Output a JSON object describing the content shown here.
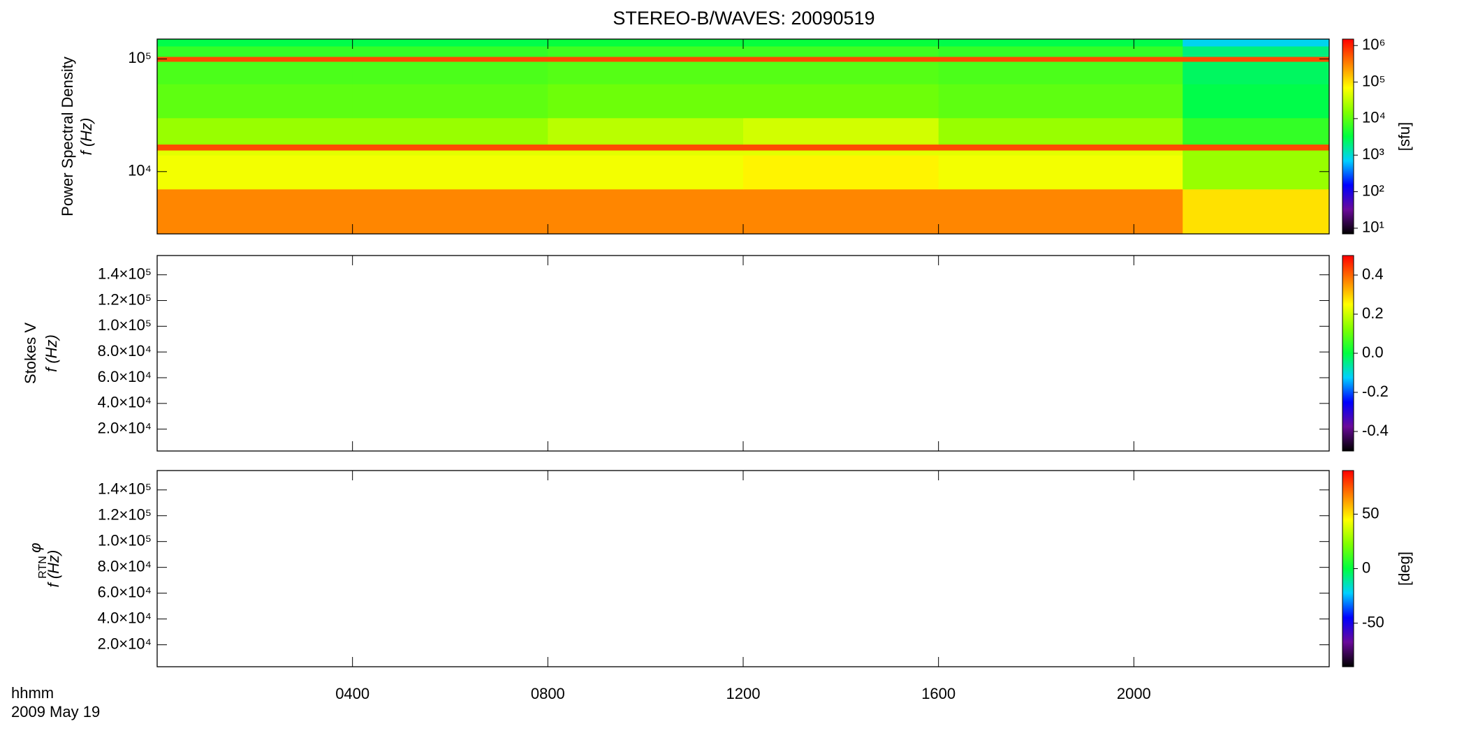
{
  "chart_data": [
    {
      "type": "heatmap",
      "title": "STEREO-B/WAVES: 20090519",
      "ylabel": [
        "Power Spectral Density",
        "f (Hz)"
      ],
      "ylog": true,
      "ylim": [
        2800,
        150000
      ],
      "yticks": [
        {
          "value": 10000,
          "label": "10⁴"
        },
        {
          "value": 100000,
          "label": "10⁵"
        }
      ],
      "xlim": [
        0,
        24
      ],
      "x_edges": [
        0,
        4,
        8,
        12,
        16,
        21,
        24
      ],
      "y_edges": [
        2800,
        7000,
        14000,
        15500,
        17500,
        30000,
        60000,
        95000,
        105000,
        130000,
        150000
      ],
      "z": [
        [
          300000,
          300000,
          300000,
          300000,
          300000,
          100000
        ],
        [
          60000,
          60000,
          60000,
          80000,
          60000,
          20000
        ],
        [
          50000,
          50000,
          50000,
          50000,
          50000,
          20000
        ],
        [
          600000,
          600000,
          600000,
          600000,
          600000,
          600000
        ],
        [
          20000,
          20000,
          30000,
          40000,
          20000,
          6000
        ],
        [
          10000,
          10000,
          12000,
          12000,
          10000,
          3000
        ],
        [
          8000,
          8000,
          9000,
          9000,
          8000,
          2500
        ],
        [
          600000,
          600000,
          600000,
          600000,
          600000,
          600000
        ],
        [
          6000,
          6000,
          7000,
          7000,
          6000,
          2000
        ],
        [
          3000,
          3000,
          3500,
          3500,
          3000,
          800
        ]
      ],
      "colormap": [
        "#000000",
        "#6a0a9a",
        "#0000ff",
        "#00d0ff",
        "#00ff40",
        "#80ff00",
        "#ffff00",
        "#ff8000",
        "#ff0000"
      ],
      "clog": true,
      "clim": [
        7,
        1500000
      ],
      "cticks": [
        {
          "value": 10,
          "label": "10¹"
        },
        {
          "value": 100,
          "label": "10²"
        },
        {
          "value": 1000,
          "label": "10³"
        },
        {
          "value": 10000,
          "label": "10⁴"
        },
        {
          "value": 100000,
          "label": "10⁵"
        },
        {
          "value": 1000000,
          "label": "10⁶"
        }
      ],
      "clabel": "[sfu]"
    },
    {
      "type": "heatmap",
      "ylabel": [
        "Stokes V",
        "f (Hz)"
      ],
      "ylim": [
        3000,
        155000
      ],
      "yticks": [
        {
          "value": 20000,
          "label": "2.0×10⁴"
        },
        {
          "value": 40000,
          "label": "4.0×10⁴"
        },
        {
          "value": 60000,
          "label": "6.0×10⁴"
        },
        {
          "value": 80000,
          "label": "8.0×10⁴"
        },
        {
          "value": 100000,
          "label": "1.0×10⁵"
        },
        {
          "value": 120000,
          "label": "1.2×10⁵"
        },
        {
          "value": 140000,
          "label": "1.4×10⁵"
        }
      ],
      "xlim": [
        0,
        24
      ],
      "colormap": [
        "#000000",
        "#6a0a9a",
        "#0000ff",
        "#00d0ff",
        "#00ff40",
        "#80ff00",
        "#ffff00",
        "#ff8000",
        "#ff0000"
      ],
      "clim": [
        -0.5,
        0.5
      ],
      "cticks": [
        -0.4,
        -0.2,
        {
          "value": 0,
          "label": "0.0"
        },
        0.2,
        0.4
      ]
    },
    {
      "type": "heatmap",
      "ylabel_symbol": "φ",
      "ylabel_subscript": "RTN",
      "ylabel": [
        "f (Hz)"
      ],
      "ylim": [
        3000,
        155000
      ],
      "yticks": [
        {
          "value": 20000,
          "label": "2.0×10⁴"
        },
        {
          "value": 40000,
          "label": "4.0×10⁴"
        },
        {
          "value": 60000,
          "label": "6.0×10⁴"
        },
        {
          "value": 80000,
          "label": "8.0×10⁴"
        },
        {
          "value": 100000,
          "label": "1.0×10⁵"
        },
        {
          "value": 120000,
          "label": "1.2×10⁵"
        },
        {
          "value": 140000,
          "label": "1.4×10⁵"
        }
      ],
      "xlim": [
        0,
        24
      ],
      "xticks": [
        {
          "value": 4,
          "label": "0400"
        },
        {
          "value": 8,
          "label": "0800"
        },
        {
          "value": 12,
          "label": "1200"
        },
        {
          "value": 16,
          "label": "1600"
        },
        {
          "value": 20,
          "label": "2000"
        }
      ],
      "xlabel": [
        "hhmm",
        "2009 May 19"
      ],
      "colormap": [
        "#000000",
        "#6a0a9a",
        "#0000ff",
        "#00d0ff",
        "#00ff40",
        "#80ff00",
        "#ffff00",
        "#ff8000",
        "#ff0000"
      ],
      "clim": [
        -90,
        90
      ],
      "cticks": [
        -50,
        0,
        50
      ],
      "clabel": "[deg]"
    }
  ]
}
